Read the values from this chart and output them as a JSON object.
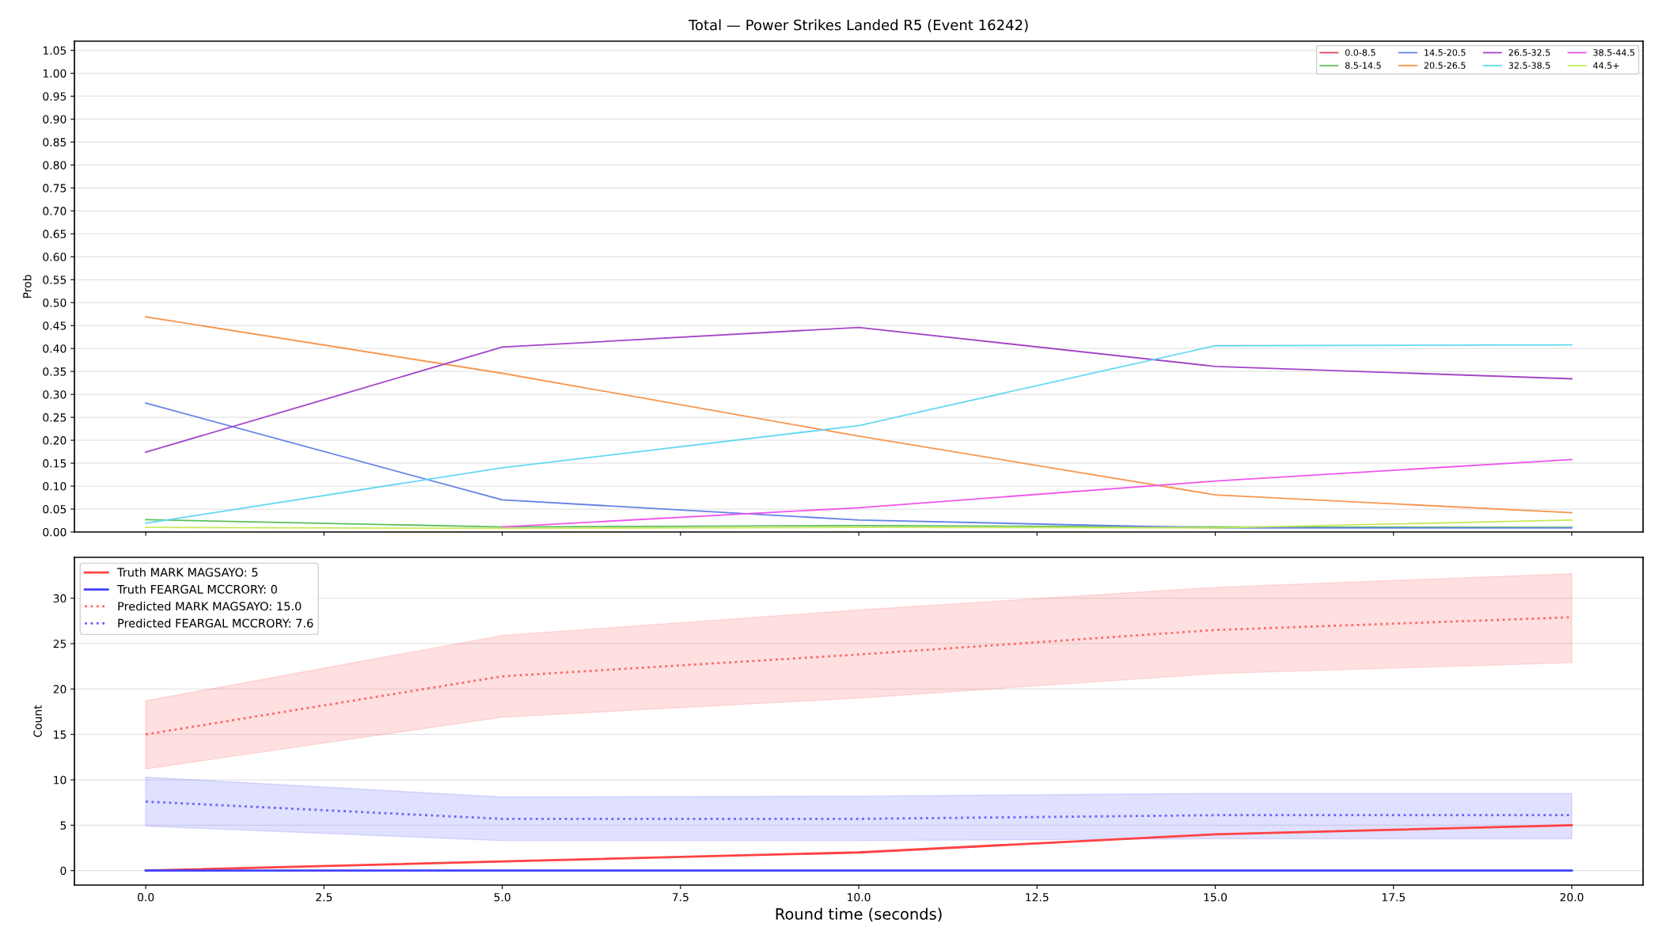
{
  "chart_data": [
    {
      "type": "line",
      "title": "Total — Power Strikes Landed R5 (Event 16242)",
      "ylabel": "Prob",
      "x": [
        0,
        5,
        10,
        15,
        20
      ],
      "series": [
        {
          "name": "0.0-8.5",
          "color": "#e6455f",
          "values": [
            null,
            null,
            null,
            null,
            null
          ]
        },
        {
          "name": "8.5-14.5",
          "color": "#5cbf5c",
          "values": [
            0.027,
            0.011,
            0.014,
            0.011,
            0.01
          ]
        },
        {
          "name": "14.5-20.5",
          "color": "#6482e6",
          "values": [
            0.281,
            0.07,
            0.026,
            0.009,
            0.009
          ]
        },
        {
          "name": "20.5-26.5",
          "color": "#f7964f",
          "values": [
            0.469,
            0.346,
            0.209,
            0.081,
            0.042
          ]
        },
        {
          "name": "26.5-32.5",
          "color": "#a445c8",
          "values": [
            0.174,
            0.403,
            0.446,
            0.361,
            0.334
          ]
        },
        {
          "name": "32.5-38.5",
          "color": "#64d8f2",
          "values": [
            0.019,
            0.14,
            0.232,
            0.406,
            0.408
          ]
        },
        {
          "name": "38.5-44.5",
          "color": "#f055ec",
          "values": [
            null,
            0.011,
            0.053,
            0.111,
            0.158
          ]
        },
        {
          "name": "44.5+",
          "color": "#c8ea5c",
          "values": [
            0.01,
            0.008,
            0.01,
            0.009,
            0.026
          ]
        }
      ],
      "xlim": [
        -1,
        21
      ],
      "xticks": [
        0,
        2.5,
        5,
        7.5,
        10,
        12.5,
        15,
        17.5,
        20
      ],
      "ylim": [
        0,
        1.07
      ],
      "yticks": [
        {
          "value": 0,
          "label": "0.00"
        },
        0.05,
        {
          "value": 0.1,
          "label": "0.10"
        },
        0.15,
        {
          "value": 0.2,
          "label": "0.20"
        },
        0.25,
        {
          "value": 0.3,
          "label": "0.30"
        },
        0.35,
        {
          "value": 0.4,
          "label": "0.40"
        },
        0.45,
        {
          "value": 0.5,
          "label": "0.50"
        },
        0.55,
        {
          "value": 0.6,
          "label": "0.60"
        },
        0.65,
        {
          "value": 0.7,
          "label": "0.70"
        },
        0.75,
        {
          "value": 0.8,
          "label": "0.80"
        },
        0.85,
        {
          "value": 0.9,
          "label": "0.90"
        },
        0.95,
        {
          "value": 1,
          "label": "1.00"
        },
        1.05
      ],
      "grid": "y",
      "legend": "top right",
      "tick_labels": "y",
      "line_style": "solid"
    },
    {
      "type": "line",
      "xlabel": "Round time (seconds)",
      "ylabel": "Count",
      "x": [
        0,
        5,
        10,
        15,
        20
      ],
      "series": [
        {
          "name": "Truth MARK MAGSAYO: 5",
          "color": "#ff4242",
          "line_style": "solid",
          "values": [
            0,
            1,
            2,
            4,
            5
          ]
        },
        {
          "name": "Truth FEARGAL MCCRORY: 0",
          "color": "#4242ff",
          "line_style": "solid",
          "values": [
            0,
            0,
            0,
            0,
            0
          ]
        },
        {
          "name": "Predicted MARK MAGSAYO: 15.0",
          "color": "#ff6464",
          "line_style": "dotted",
          "values": [
            15.0,
            21.4,
            23.8,
            26.5,
            27.9
          ],
          "lower": [
            11.2,
            16.9,
            19.0,
            21.7,
            22.9
          ],
          "upper": [
            18.7,
            25.9,
            28.7,
            31.2,
            32.7
          ]
        },
        {
          "name": "Predicted FEARGAL MCCRORY: 7.6",
          "color": "#6464ff",
          "line_style": "dotted",
          "values": [
            7.6,
            5.7,
            5.7,
            6.1,
            6.1
          ],
          "lower": [
            4.9,
            3.3,
            3.3,
            3.5,
            3.5
          ],
          "upper": [
            10.3,
            8.1,
            8.2,
            8.5,
            8.5
          ]
        }
      ],
      "xlim": [
        -1,
        21
      ],
      "xticks": [
        {
          "value": 0,
          "label": "0.0"
        },
        2.5,
        {
          "value": 5,
          "label": "5.0"
        },
        7.5,
        {
          "value": 10,
          "label": "10.0"
        },
        12.5,
        {
          "value": 15,
          "label": "15.0"
        },
        17.5,
        {
          "value": 20,
          "label": "20.0"
        }
      ],
      "ylim": [
        -1.6,
        34.5
      ],
      "yticks": [
        0,
        5,
        10,
        15,
        20,
        25,
        30
      ],
      "grid": "y",
      "legend": "top left"
    }
  ]
}
